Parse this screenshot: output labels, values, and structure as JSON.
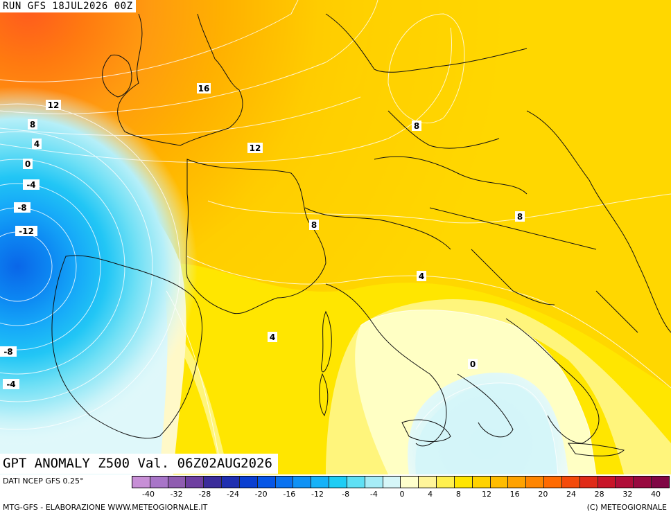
{
  "header": {
    "run_label": "RUN GFS 18JUL2026 00Z"
  },
  "title": {
    "text": "GPT ANOMALY Z500 Val. 06Z02AUG2026"
  },
  "footer": {
    "source": "DATI NCEP GFS 0.25°",
    "credits": "MTG-GFS - ELABORAZIONE WWW.METEOGIORNALE.IT",
    "copyright": "(C) METEOGIORNALE"
  },
  "legend": {
    "colors": [
      "#c78fd6",
      "#a875c8",
      "#8f5cb0",
      "#6e3fa0",
      "#3b2c9a",
      "#1f2fb0",
      "#0b3fd0",
      "#0656e6",
      "#0a72f0",
      "#0f92f5",
      "#16b2f8",
      "#1ecdf5",
      "#5fe0f5",
      "#a6ecf7",
      "#d6f6f8",
      "#ffffcc",
      "#fff59a",
      "#fff04f",
      "#ffe500",
      "#ffd200",
      "#ffbc00",
      "#ffa200",
      "#ff8500",
      "#ff6a00",
      "#f44a0a",
      "#e02a17",
      "#c81428",
      "#b00d38",
      "#98093f",
      "#800645"
    ],
    "ticks": [
      "-40",
      "-32",
      "-28",
      "-24",
      "-20",
      "-16",
      "-12",
      "-8",
      "-4",
      "0",
      "4",
      "8",
      "12",
      "16",
      "20",
      "24",
      "28",
      "32",
      "40"
    ]
  },
  "map": {
    "contour_labels": [
      "16",
      "12",
      "8",
      "4",
      "0",
      "-4",
      "-8",
      "-12",
      "12",
      "8",
      "8",
      "8",
      "4",
      "4",
      "0",
      "-8",
      "-4"
    ]
  }
}
